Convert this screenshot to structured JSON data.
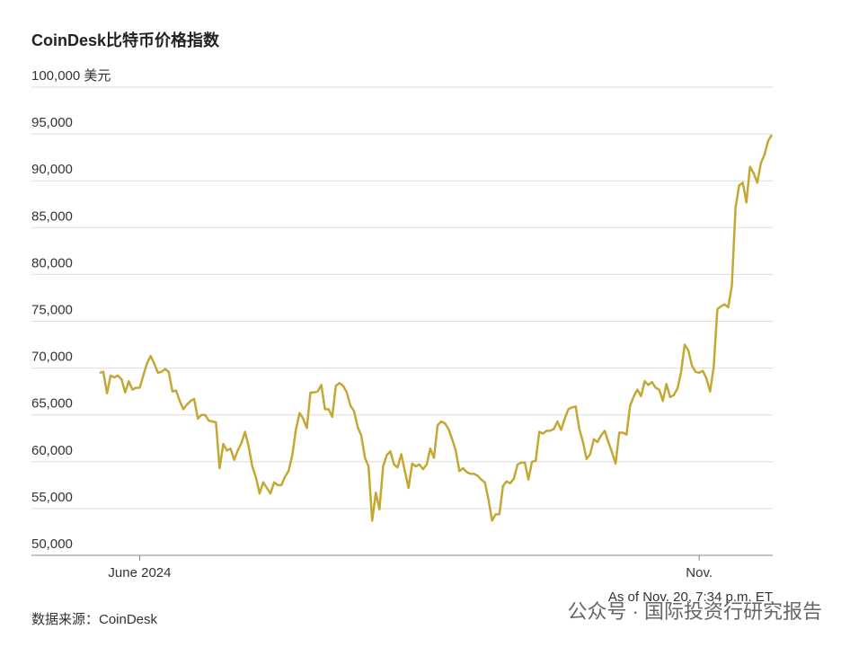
{
  "chart_data": {
    "type": "line",
    "title": "CoinDesk比特币价格指数",
    "source": "数据来源：CoinDesk",
    "note": "As of Nov. 20, 7:34 p.m. ET",
    "watermark": "公众号 · 国际投资行研究报告",
    "color": "#c4a834",
    "grid": true,
    "ylim": [
      50000,
      100000
    ],
    "yticks": [
      {
        "value": 50000,
        "label": "50,000"
      },
      {
        "value": 55000,
        "label": "55,000"
      },
      {
        "value": 60000,
        "label": "60,000"
      },
      {
        "value": 65000,
        "label": "65,000"
      },
      {
        "value": 70000,
        "label": "70,000"
      },
      {
        "value": 75000,
        "label": "75,000"
      },
      {
        "value": 80000,
        "label": "80,000"
      },
      {
        "value": 85000,
        "label": "85,000"
      },
      {
        "value": 90000,
        "label": "90,000"
      },
      {
        "value": 95000,
        "label": "95,000"
      },
      {
        "value": 100000,
        "label": "100,000 美元"
      }
    ],
    "categories": [
      null,
      null,
      null,
      null,
      null,
      null,
      null,
      null,
      null,
      null,
      null,
      "June 2024",
      null,
      null,
      null,
      null,
      null,
      null,
      null,
      null,
      null,
      null,
      null,
      null,
      null,
      null,
      null,
      null,
      null,
      null,
      null,
      null,
      null,
      null,
      null,
      null,
      null,
      null,
      null,
      null,
      null,
      null,
      null,
      null,
      null,
      null,
      null,
      null,
      null,
      null,
      null,
      null,
      null,
      null,
      null,
      null,
      null,
      null,
      null,
      null,
      null,
      null,
      null,
      null,
      null,
      null,
      null,
      null,
      null,
      null,
      null,
      null,
      null,
      null,
      null,
      null,
      null,
      null,
      null,
      null,
      null,
      null,
      null,
      null,
      null,
      null,
      null,
      null,
      null,
      null,
      null,
      null,
      null,
      null,
      null,
      null,
      null,
      null,
      null,
      null,
      null,
      null,
      null,
      null,
      null,
      null,
      null,
      null,
      null,
      null,
      null,
      null,
      null,
      null,
      null,
      null,
      null,
      null,
      null,
      null,
      null,
      null,
      null,
      null,
      null,
      null,
      null,
      null,
      null,
      null,
      null,
      null,
      null,
      null,
      null,
      null,
      null,
      null,
      null,
      null,
      null,
      null,
      null,
      null,
      null,
      null,
      null,
      null,
      null,
      null,
      null,
      null,
      null,
      null,
      null,
      null,
      null,
      null,
      null,
      null,
      null,
      null,
      null,
      null,
      null,
      "Nov.",
      null,
      null,
      null,
      null,
      null,
      null,
      null,
      null,
      null,
      null,
      null,
      null,
      null,
      null,
      null,
      null,
      null,
      null,
      null,
      null
    ],
    "values": [
      69500,
      69600,
      67300,
      69200,
      69000,
      69200,
      68800,
      67400,
      68600,
      67700,
      67900,
      67900,
      69200,
      70500,
      71300,
      70500,
      69500,
      69600,
      69900,
      69600,
      67500,
      67600,
      66500,
      65600,
      66100,
      66500,
      66700,
      64600,
      65000,
      65000,
      64400,
      64300,
      64200,
      59300,
      61900,
      61200,
      61400,
      60200,
      61200,
      62000,
      63200,
      61600,
      59500,
      58300,
      56600,
      57800,
      57200,
      56600,
      57800,
      57500,
      57500,
      58400,
      59000,
      60700,
      63400,
      65200,
      64600,
      63600,
      67400,
      67400,
      67500,
      68200,
      65600,
      65600,
      64800,
      68100,
      68400,
      68100,
      67400,
      66000,
      65400,
      63700,
      62800,
      60400,
      59500,
      53700,
      56700,
      54900,
      59500,
      60700,
      61100,
      59700,
      59400,
      60800,
      59000,
      57200,
      59800,
      59500,
      59700,
      59200,
      59700,
      61400,
      60400,
      63900,
      64300,
      64100,
      63500,
      62400,
      61200,
      59000,
      59300,
      58900,
      58700,
      58700,
      58500,
      58100,
      57800,
      56000,
      53700,
      54400,
      54400,
      57400,
      57900,
      57700,
      58200,
      59700,
      59900,
      59900,
      58100,
      60000,
      60100,
      63200,
      63000,
      63300,
      63300,
      63500,
      64300,
      63400,
      64600,
      65600,
      65800,
      65900,
      63500,
      62100,
      60300,
      60800,
      62400,
      62100,
      62800,
      63300,
      62100,
      61000,
      59800,
      63100,
      63100,
      62900,
      66000,
      67000,
      67700,
      67000,
      68600,
      68200,
      68500,
      67900,
      67700,
      66500,
      68300,
      66900,
      67100,
      67800,
      69500,
      72500,
      71900,
      70300,
      69600,
      69500,
      69700,
      68900,
      67500,
      70100,
      76300,
      76600,
      76800,
      76500,
      78800,
      87100,
      89500,
      89800,
      87700,
      91500,
      90800,
      89800,
      91900,
      92800,
      94300,
      94900
    ]
  }
}
